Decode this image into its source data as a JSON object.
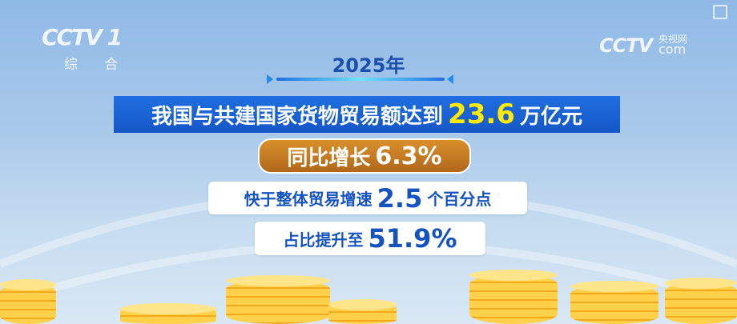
{
  "channel_logo": {
    "name": "CCTV 1",
    "subtitle": "综 合"
  },
  "watermark": {
    "brand": "CCTV",
    "cn": "央视网",
    "domain": "com"
  },
  "year": "2025年",
  "headline": {
    "prefix": "我国与共建国家货物贸易额达到",
    "value": "23.6",
    "unit": "万亿元"
  },
  "growth": {
    "label": "同比增长",
    "value": "6.3%"
  },
  "faster": {
    "label": "快于整体贸易增速",
    "value": "2.5",
    "unit": "个百分点"
  },
  "share": {
    "label": "占比提升至",
    "value": "51.9%"
  },
  "colors": {
    "banner": "#1f6fe0",
    "highlight": "#ffea00",
    "pill": "#c77a22",
    "text_blue": "#1453c0"
  }
}
